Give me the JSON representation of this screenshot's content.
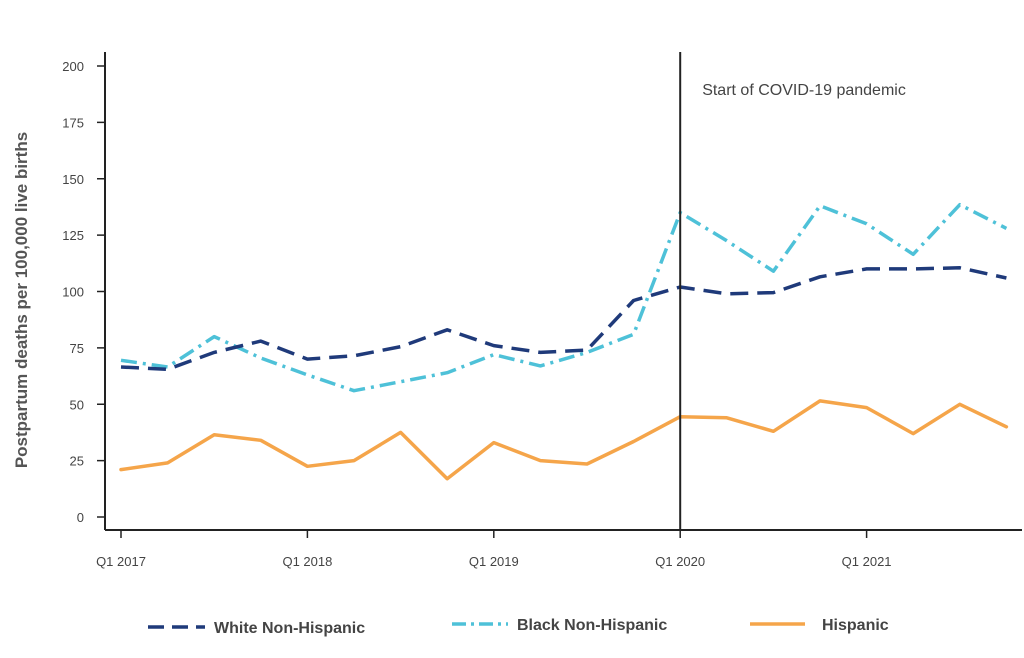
{
  "chart_data": {
    "type": "line",
    "ylabel": "Postpartum deaths per 100,000 live births",
    "xlabel": "",
    "ylim": [
      0,
      200
    ],
    "yticks": [
      0,
      25,
      50,
      75,
      100,
      125,
      150,
      175,
      200
    ],
    "x_tick_labels": [
      {
        "index": 0,
        "label": "Q1 2017"
      },
      {
        "index": 4,
        "label": "Q1 2018"
      },
      {
        "index": 8,
        "label": "Q1 2019"
      },
      {
        "index": 12,
        "label": "Q1 2020"
      },
      {
        "index": 16,
        "label": "Q1 2021"
      }
    ],
    "x": [
      "Q1 2017",
      "Q2 2017",
      "Q3 2017",
      "Q4 2017",
      "Q1 2018",
      "Q2 2018",
      "Q3 2018",
      "Q4 2018",
      "Q1 2019",
      "Q2 2019",
      "Q3 2019",
      "Q4 2019",
      "Q1 2020",
      "Q2 2020",
      "Q3 2020",
      "Q4 2020",
      "Q1 2021",
      "Q2 2021",
      "Q3 2021",
      "Q4 2021"
    ],
    "series": [
      {
        "name": "White Non-Hispanic",
        "color": "#1f3a7a",
        "style": "dashed",
        "values": [
          66.5,
          65.5,
          73,
          78,
          70,
          71.5,
          75.5,
          83,
          76,
          73,
          74,
          96,
          102,
          99,
          99.5,
          106.5,
          110,
          110,
          110.5,
          106
        ]
      },
      {
        "name": "Black Non-Hispanic",
        "color": "#4ec1d8",
        "style": "dashdot",
        "values": [
          69.5,
          66.5,
          80,
          70.5,
          63,
          56,
          60,
          64,
          72,
          67,
          73,
          81,
          135,
          122.5,
          109,
          138,
          130,
          116.5,
          138.5,
          128
        ]
      },
      {
        "name": "Hispanic",
        "color": "#f5a54a",
        "style": "solid",
        "values": [
          21,
          24,
          36.5,
          34,
          22.5,
          25,
          37.5,
          17,
          33,
          25,
          23.5,
          33.5,
          44.5,
          44,
          38,
          51.5,
          48.5,
          37,
          50,
          40
        ]
      }
    ],
    "annotations": [
      {
        "at": "Q1 2020",
        "text": "Start of COVID-19 pandemic"
      }
    ],
    "legend": "bottom",
    "grid": false
  }
}
